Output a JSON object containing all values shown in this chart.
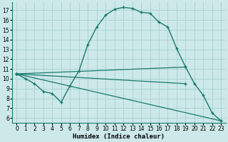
{
  "xlabel": "Humidex (Indice chaleur)",
  "xlim": [
    -0.5,
    23.5
  ],
  "ylim": [
    5.5,
    17.8
  ],
  "yticks": [
    6,
    7,
    8,
    9,
    10,
    11,
    12,
    13,
    14,
    15,
    16,
    17
  ],
  "xticks": [
    0,
    1,
    2,
    3,
    4,
    5,
    6,
    7,
    8,
    9,
    10,
    11,
    12,
    13,
    14,
    15,
    16,
    17,
    18,
    19,
    20,
    21,
    22,
    23
  ],
  "bg_color": "#cce8e8",
  "line_color": "#1a7a6e",
  "curve_x": [
    0,
    1,
    2,
    3,
    4,
    5,
    6,
    7,
    8,
    9,
    10,
    11,
    12,
    13,
    14,
    15,
    16,
    17,
    18,
    19,
    20,
    21,
    22,
    23
  ],
  "curve_y": [
    10.5,
    10.0,
    9.5,
    8.7,
    8.5,
    7.6,
    9.3,
    10.8,
    13.5,
    15.3,
    16.5,
    17.1,
    17.3,
    17.2,
    16.8,
    16.7,
    15.8,
    15.3,
    13.1,
    11.2,
    9.5,
    8.3,
    6.5,
    5.7
  ],
  "line2_x": [
    0,
    19
  ],
  "line2_y": [
    10.5,
    9.5
  ],
  "line3_x": [
    0,
    19
  ],
  "line3_y": [
    10.5,
    11.2
  ],
  "line4_x": [
    0,
    23
  ],
  "line4_y": [
    10.5,
    5.7
  ],
  "grid_color": "#aed4d4"
}
